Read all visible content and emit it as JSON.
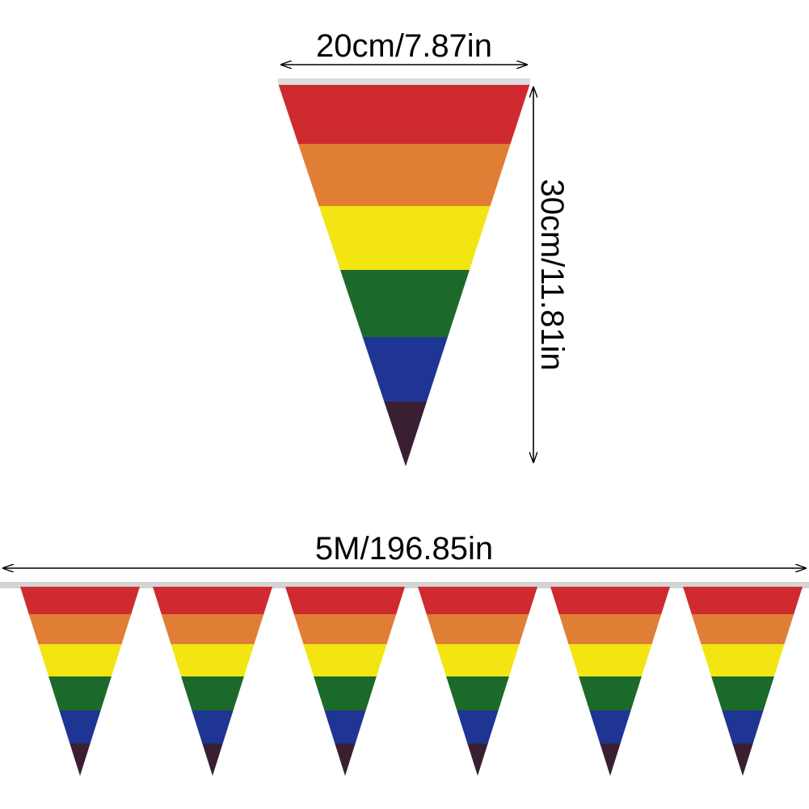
{
  "dimensions": {
    "width_label": "20cm/7.87in",
    "height_label": "30cm/11.81in",
    "length_label": "5M/196.85in"
  },
  "flag": {
    "stripe_colors": [
      "#cf2a30",
      "#e07e35",
      "#f2e511",
      "#1c6a2a",
      "#1f3594",
      "#3a1f33"
    ],
    "rope_color": "#d9d9d9"
  },
  "string": {
    "flag_count": 6
  }
}
